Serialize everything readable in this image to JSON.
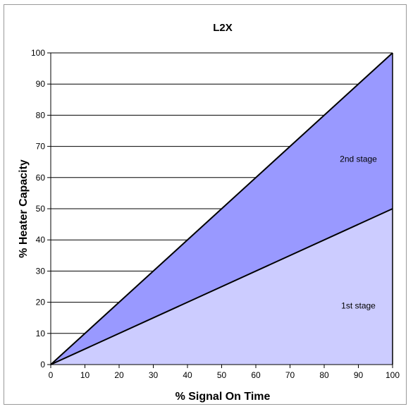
{
  "chart_data": {
    "type": "area",
    "title": "L2X",
    "xlabel": "% Signal On Time",
    "ylabel": "% Heater Capacity",
    "xlim": [
      0,
      100
    ],
    "ylim": [
      0,
      100
    ],
    "x_ticks": [
      0,
      10,
      20,
      30,
      40,
      50,
      60,
      70,
      80,
      90,
      100
    ],
    "y_ticks": [
      0,
      10,
      20,
      30,
      40,
      50,
      60,
      70,
      80,
      90,
      100
    ],
    "grid": "horizontal",
    "x": [
      0,
      100
    ],
    "series": [
      {
        "values": [
          0,
          50
        ],
        "color": "#ccccff"
      },
      {
        "values": [
          0,
          100
        ],
        "color": "#9999ff"
      }
    ],
    "annotations": [
      {
        "text": "2nd stage",
        "x": 90,
        "y": 65
      },
      {
        "text": "1st stage",
        "x": 90,
        "y": 18
      }
    ]
  }
}
